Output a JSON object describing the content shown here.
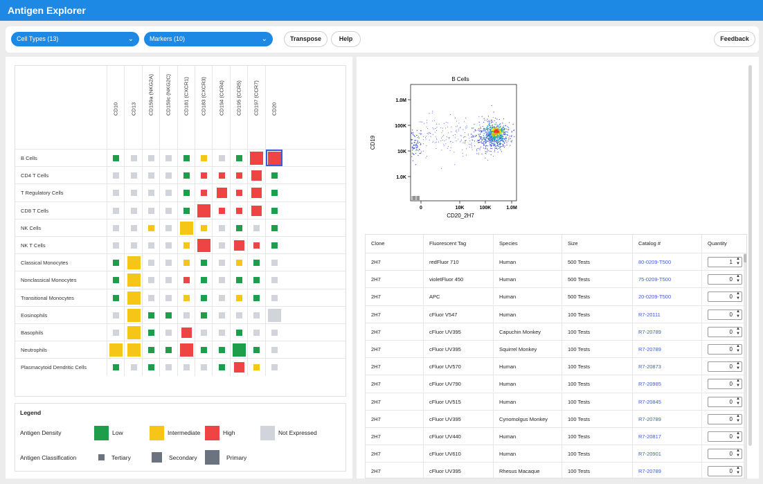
{
  "app": {
    "title": "Antigen Explorer"
  },
  "toolbar": {
    "cell_types_label": "Cell Types (13)",
    "markers_label": "Markers (10)",
    "transpose_label": "Transpose",
    "help_label": "Help",
    "feedback_label": "Feedback"
  },
  "matrix": {
    "markers": [
      "CD10",
      "CD13",
      "CD159a (NKG2A)",
      "CD159c (NKG2C)",
      "CD181 (CXCR1)",
      "CD183 (CXCR3)",
      "CD194 (CCR4)",
      "CD195 (CCR5)",
      "CD197 (CCR7)",
      "CD20"
    ],
    "selected": {
      "row": 0,
      "col": 9
    },
    "rows": [
      {
        "label": "B Cells",
        "cells": [
          [
            "L",
            "T"
          ],
          [
            "N",
            "T"
          ],
          [
            "N",
            "T"
          ],
          [
            "N",
            "T"
          ],
          [
            "L",
            "T"
          ],
          [
            "I",
            "T"
          ],
          [
            "N",
            "T"
          ],
          [
            "L",
            "T"
          ],
          [
            "H",
            "P"
          ],
          [
            "H",
            "P"
          ]
        ]
      },
      {
        "label": "CD4 T Cells",
        "cells": [
          [
            "N",
            "T"
          ],
          [
            "N",
            "T"
          ],
          [
            "N",
            "T"
          ],
          [
            "N",
            "T"
          ],
          [
            "L",
            "T"
          ],
          [
            "H",
            "T"
          ],
          [
            "H",
            "T"
          ],
          [
            "H",
            "T"
          ],
          [
            "H",
            "S"
          ],
          [
            "L",
            "T"
          ]
        ]
      },
      {
        "label": "T Regulatory Cells",
        "cells": [
          [
            "N",
            "T"
          ],
          [
            "N",
            "T"
          ],
          [
            "N",
            "T"
          ],
          [
            "N",
            "T"
          ],
          [
            "L",
            "T"
          ],
          [
            "H",
            "T"
          ],
          [
            "H",
            "S"
          ],
          [
            "H",
            "T"
          ],
          [
            "H",
            "S"
          ],
          [
            "L",
            "T"
          ]
        ]
      },
      {
        "label": "CD8 T Cells",
        "cells": [
          [
            "N",
            "T"
          ],
          [
            "N",
            "T"
          ],
          [
            "N",
            "T"
          ],
          [
            "N",
            "T"
          ],
          [
            "L",
            "T"
          ],
          [
            "H",
            "P"
          ],
          [
            "H",
            "T"
          ],
          [
            "H",
            "T"
          ],
          [
            "H",
            "S"
          ],
          [
            "L",
            "T"
          ]
        ]
      },
      {
        "label": "NK Cells",
        "cells": [
          [
            "N",
            "T"
          ],
          [
            "N",
            "T"
          ],
          [
            "I",
            "T"
          ],
          [
            "N",
            "T"
          ],
          [
            "I",
            "P"
          ],
          [
            "I",
            "T"
          ],
          [
            "N",
            "T"
          ],
          [
            "L",
            "T"
          ],
          [
            "N",
            "T"
          ],
          [
            "L",
            "T"
          ]
        ]
      },
      {
        "label": "NK T Cells",
        "cells": [
          [
            "N",
            "T"
          ],
          [
            "N",
            "T"
          ],
          [
            "N",
            "T"
          ],
          [
            "N",
            "T"
          ],
          [
            "I",
            "T"
          ],
          [
            "H",
            "P"
          ],
          [
            "N",
            "T"
          ],
          [
            "H",
            "S"
          ],
          [
            "H",
            "T"
          ],
          [
            "L",
            "T"
          ]
        ]
      },
      {
        "label": "Classical Monocytes",
        "cells": [
          [
            "L",
            "T"
          ],
          [
            "I",
            "P"
          ],
          [
            "N",
            "T"
          ],
          [
            "N",
            "T"
          ],
          [
            "I",
            "T"
          ],
          [
            "L",
            "T"
          ],
          [
            "N",
            "T"
          ],
          [
            "I",
            "T"
          ],
          [
            "L",
            "T"
          ],
          [
            "N",
            "T"
          ]
        ]
      },
      {
        "label": "Nonclassical Monocytes",
        "cells": [
          [
            "L",
            "T"
          ],
          [
            "I",
            "P"
          ],
          [
            "N",
            "T"
          ],
          [
            "N",
            "T"
          ],
          [
            "H",
            "T"
          ],
          [
            "L",
            "T"
          ],
          [
            "N",
            "T"
          ],
          [
            "L",
            "T"
          ],
          [
            "L",
            "T"
          ],
          [
            "N",
            "T"
          ]
        ]
      },
      {
        "label": "Transitional Monocytes",
        "cells": [
          [
            "L",
            "T"
          ],
          [
            "I",
            "P"
          ],
          [
            "N",
            "T"
          ],
          [
            "N",
            "T"
          ],
          [
            "I",
            "T"
          ],
          [
            "L",
            "T"
          ],
          [
            "N",
            "T"
          ],
          [
            "I",
            "T"
          ],
          [
            "L",
            "T"
          ],
          [
            "N",
            "T"
          ]
        ]
      },
      {
        "label": "Eosinophils",
        "cells": [
          [
            "N",
            "T"
          ],
          [
            "I",
            "P"
          ],
          [
            "L",
            "T"
          ],
          [
            "L",
            "T"
          ],
          [
            "N",
            "T"
          ],
          [
            "L",
            "T"
          ],
          [
            "N",
            "T"
          ],
          [
            "N",
            "T"
          ],
          [
            "N",
            "T"
          ],
          [
            "N",
            "P"
          ]
        ]
      },
      {
        "label": "Basophils",
        "cells": [
          [
            "N",
            "T"
          ],
          [
            "I",
            "P"
          ],
          [
            "L",
            "T"
          ],
          [
            "N",
            "T"
          ],
          [
            "H",
            "S"
          ],
          [
            "N",
            "T"
          ],
          [
            "N",
            "T"
          ],
          [
            "L",
            "T"
          ],
          [
            "N",
            "T"
          ],
          [
            "N",
            "T"
          ]
        ]
      },
      {
        "label": "Neutrophils",
        "cells": [
          [
            "I",
            "P"
          ],
          [
            "I",
            "P"
          ],
          [
            "L",
            "T"
          ],
          [
            "L",
            "T"
          ],
          [
            "H",
            "P"
          ],
          [
            "L",
            "T"
          ],
          [
            "L",
            "T"
          ],
          [
            "L",
            "P"
          ],
          [
            "L",
            "T"
          ],
          [
            "N",
            "T"
          ]
        ]
      },
      {
        "label": "Plasmacytoid Dendritic Cells",
        "cells": [
          [
            "L",
            "T"
          ],
          [
            "N",
            "T"
          ],
          [
            "L",
            "T"
          ],
          [
            "N",
            "T"
          ],
          [
            "N",
            "T"
          ],
          [
            "N",
            "T"
          ],
          [
            "L",
            "T"
          ],
          [
            "H",
            "S"
          ],
          [
            "I",
            "T"
          ],
          [
            "N",
            "T"
          ]
        ]
      }
    ]
  },
  "legend": {
    "title": "Legend",
    "density_label": "Antigen Density",
    "classification_label": "Antigen Classification",
    "density_items": [
      {
        "label": "Low",
        "color": "#1e9e4a"
      },
      {
        "label": "Intermediate",
        "color": "#f5c518"
      },
      {
        "label": "High",
        "color": "#ef4444"
      },
      {
        "label": "Not Expressed",
        "color": "#d1d5db"
      }
    ],
    "class_items": [
      "Tertiary",
      "Secondary",
      "Primary"
    ]
  },
  "colors": {
    "L": "#1e9e4a",
    "I": "#f5c518",
    "H": "#ef4444",
    "N": "#d1d5db",
    "accent": "#1e88e5",
    "select": "#3b5bdb"
  },
  "plot": {
    "title": "B Cells",
    "xlabel": "CD20_2H7",
    "ylabel": "CD19",
    "xticks": [
      "0",
      "10K",
      "100K",
      "1.0M"
    ],
    "yticks": [
      "1.0M",
      "100K",
      "10K",
      "1.0K"
    ]
  },
  "table": {
    "columns": [
      "Clone",
      "Fluorescent Tag",
      "Species",
      "Size",
      "Catalog #",
      "Quantity"
    ],
    "rows": [
      [
        "2H7",
        "redFluor 710",
        "Human",
        "500 Tests",
        "80-0209-T500",
        "1"
      ],
      [
        "2H7",
        "violetFluor 450",
        "Human",
        "500 Tests",
        "75-0209-T500",
        "0"
      ],
      [
        "2H7",
        "APC",
        "Human",
        "500 Tests",
        "20-0209-T500",
        "0"
      ],
      [
        "2H7",
        "cFluor V547",
        "Human",
        "100 Tests",
        "R7-20111",
        "0"
      ],
      [
        "2H7",
        "cFluor UV395",
        "Capuchin Monkey",
        "100 Tests",
        "R7-20789",
        "0"
      ],
      [
        "2H7",
        "cFluor UV395",
        "Squirrel Monkey",
        "100 Tests",
        "R7-20789",
        "0"
      ],
      [
        "2H7",
        "cFluor UV570",
        "Human",
        "100 Tests",
        "R7-20873",
        "0"
      ],
      [
        "2H7",
        "cFluor UV790",
        "Human",
        "100 Tests",
        "R7-20985",
        "0"
      ],
      [
        "2H7",
        "cFluor UV515",
        "Human",
        "100 Tests",
        "R7-20845",
        "0"
      ],
      [
        "2H7",
        "cFluor UV395",
        "Cynomolgus Monkey",
        "100 Tests",
        "R7-20789",
        "0"
      ],
      [
        "2H7",
        "cFluor UV440",
        "Human",
        "100 Tests",
        "R7-20817",
        "0"
      ],
      [
        "2H7",
        "cFluor UV610",
        "Human",
        "100 Tests",
        "R7-20901",
        "0"
      ],
      [
        "2H7",
        "cFluor UV395",
        "Rhesus Macaque",
        "100 Tests",
        "R7-20789",
        "0"
      ]
    ]
  }
}
